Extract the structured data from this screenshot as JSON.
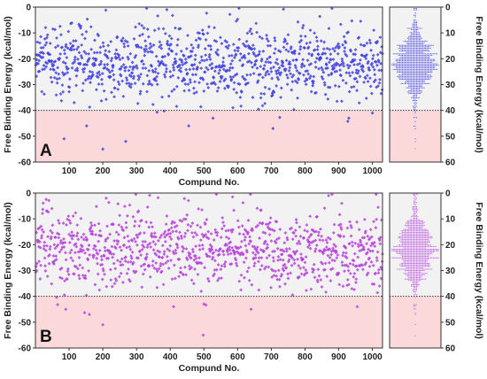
{
  "colors": {
    "upper_region": "#f2f2f2",
    "lower_region": "#fbd9da",
    "threshold_line": "#333333",
    "series_A": "#3f3fe0",
    "series_B": "#b63fdc"
  },
  "chart_data": [
    {
      "type": "scatter",
      "panel_label": "A",
      "xlabel": "Compund No.",
      "ylabel": "Free Binding Energy (kcal/mol)",
      "xlim": [
        0,
        1030
      ],
      "ylim": [
        -60,
        0
      ],
      "x_ticks": [
        100,
        200,
        300,
        400,
        500,
        600,
        700,
        800,
        900,
        1000
      ],
      "y_ticks": [
        0,
        -10,
        -20,
        -30,
        -40,
        -50,
        -60
      ],
      "threshold": -40,
      "shading": {
        "above_threshold": "upper_region",
        "below_threshold": "lower_region"
      },
      "n_points": 1030,
      "distribution": {
        "mean": -22,
        "sd": 7.2,
        "min": -55,
        "max": -0.5
      },
      "notable_points": [
        {
          "x": 85,
          "y": -51
        },
        {
          "x": 200,
          "y": -55
        },
        {
          "x": 152,
          "y": -46
        },
        {
          "x": 268,
          "y": -52
        },
        {
          "x": 330,
          "y": -0.5
        },
        {
          "x": 390,
          "y": -1
        },
        {
          "x": 455,
          "y": -46
        },
        {
          "x": 527,
          "y": -43
        },
        {
          "x": 705,
          "y": -47
        },
        {
          "x": 880,
          "y": -0.5
        },
        {
          "x": 930,
          "y": -43
        },
        {
          "x": 1000,
          "y": -41
        }
      ],
      "grid": false,
      "legend": "none"
    },
    {
      "type": "swarm",
      "panel": "A-distribution",
      "ylabel": "Free Binding Energy (kcal/mol)",
      "y_ticks_labels": [
        "0",
        "10",
        "20",
        "30",
        "40",
        "50",
        "60"
      ],
      "ylim": [
        -60,
        0
      ],
      "threshold": -40,
      "distribution": {
        "mean": -22,
        "sd": 7.2,
        "min": -55,
        "max": -0.5
      }
    },
    {
      "type": "scatter",
      "panel_label": "B",
      "xlabel": "Compund No.",
      "ylabel": "Free Binding Energy (kcal/mol)",
      "xlim": [
        0,
        1030
      ],
      "ylim": [
        -60,
        0
      ],
      "x_ticks": [
        100,
        200,
        300,
        400,
        500,
        600,
        700,
        800,
        900,
        1000
      ],
      "y_ticks": [
        0,
        -10,
        -20,
        -30,
        -40,
        -50,
        -60
      ],
      "threshold": -40,
      "shading": {
        "above_threshold": "upper_region",
        "below_threshold": "lower_region"
      },
      "n_points": 1030,
      "distribution": {
        "mean": -22,
        "sd": 7.5,
        "min": -55,
        "max": -0.5
      },
      "notable_points": [
        {
          "x": 90,
          "y": -45
        },
        {
          "x": 200,
          "y": -51
        },
        {
          "x": 160,
          "y": -47
        },
        {
          "x": 210,
          "y": -2
        },
        {
          "x": 410,
          "y": -44
        },
        {
          "x": 498,
          "y": -55
        },
        {
          "x": 585,
          "y": -1.5
        },
        {
          "x": 640,
          "y": -45
        },
        {
          "x": 880,
          "y": -0.5
        },
        {
          "x": 955,
          "y": -44
        }
      ],
      "grid": false,
      "legend": "none"
    },
    {
      "type": "swarm",
      "panel": "B-distribution",
      "ylabel": "Free Binding Energy (kcal/mol)",
      "y_ticks_labels": [
        "0",
        "10",
        "20",
        "30",
        "40",
        "50",
        "60"
      ],
      "ylim": [
        -60,
        0
      ],
      "threshold": -40,
      "distribution": {
        "mean": -22,
        "sd": 7.5,
        "min": -55,
        "max": -0.5
      }
    }
  ]
}
